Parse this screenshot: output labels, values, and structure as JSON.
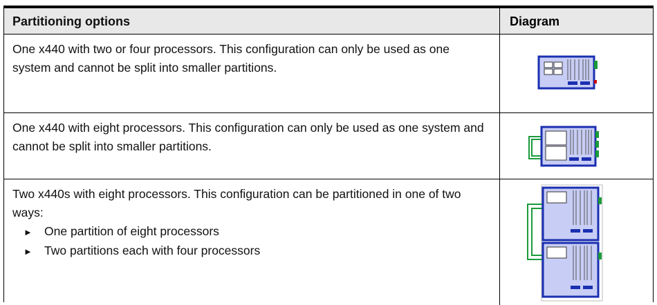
{
  "table": {
    "header": [
      "Partitioning options",
      "Diagram"
    ],
    "rows": [
      {
        "text": "One x440 with two or four processors. This configuration can only be used as one system and cannot be split into smaller partitions."
      },
      {
        "text": "One x440 with eight processors. This configuration can only be used as one system and cannot be split into smaller partitions."
      },
      {
        "text": "Two x440s with eight processors. This configuration can be partitioned in one of two ways:",
        "bullets": [
          "One partition of eight processors",
          "Two partitions each with four processors"
        ]
      }
    ]
  }
}
